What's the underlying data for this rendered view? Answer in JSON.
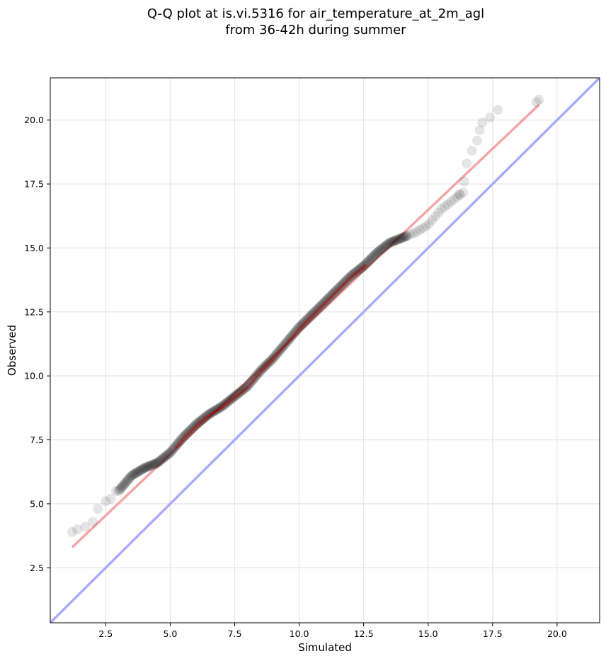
{
  "chart_data": {
    "type": "scatter",
    "title_line1": "Q-Q plot at is.vi.5316 for air_temperature_at_2m_agl",
    "title_line2": "from 36-42h during summer",
    "xlabel": "Simulated",
    "ylabel": "Observed",
    "xlim": [
      0.35,
      21.65
    ],
    "ylim": [
      0.35,
      21.65
    ],
    "xticks": [
      2.5,
      5.0,
      7.5,
      10.0,
      12.5,
      15.0,
      17.5,
      20.0
    ],
    "yticks": [
      2.5,
      5.0,
      7.5,
      10.0,
      12.5,
      15.0,
      17.5,
      20.0
    ],
    "xtick_labels": [
      "2.5",
      "5.0",
      "7.5",
      "10.0",
      "12.5",
      "15.0",
      "17.5",
      "20.0"
    ],
    "ytick_labels": [
      "2.5",
      "5.0",
      "7.5",
      "10.0",
      "12.5",
      "15.0",
      "17.5",
      "20.0"
    ],
    "grid": true,
    "reference_line": {
      "name": "1:1",
      "color": "#aaaaff",
      "x": [
        0.35,
        21.65
      ],
      "y": [
        0.35,
        21.65
      ]
    },
    "fit_line": {
      "color": "#f4a6a6",
      "x": [
        1.2,
        19.3
      ],
      "y": [
        3.3,
        20.6
      ]
    },
    "marker_color": "#000000",
    "quantile_profile": {
      "x": [
        1.2,
        1.6,
        2.1,
        2.6,
        3.0,
        3.5,
        4.0,
        4.5,
        5.0,
        5.5,
        6.0,
        6.5,
        7.0,
        7.5,
        8.0,
        8.5,
        9.0,
        9.5,
        10.0,
        10.5,
        11.0,
        11.5,
        12.0,
        12.5,
        13.0,
        13.5,
        14.0,
        14.5,
        15.0,
        15.5,
        16.0,
        16.4,
        16.6,
        17.0,
        17.4,
        17.7,
        18.0,
        19.3
      ],
      "y": [
        3.9,
        4.05,
        4.4,
        5.1,
        5.5,
        6.1,
        6.4,
        6.6,
        7.0,
        7.6,
        8.1,
        8.5,
        8.8,
        9.2,
        9.6,
        10.2,
        10.7,
        11.3,
        11.9,
        12.4,
        12.9,
        13.4,
        13.9,
        14.3,
        14.8,
        15.2,
        15.4,
        15.6,
        15.9,
        16.5,
        16.9,
        17.2,
        18.3,
        19.6,
        20.1,
        20.4,
        20.6,
        20.8
      ]
    },
    "sample_points": [
      [
        1.2,
        3.9
      ],
      [
        1.4,
        4.0
      ],
      [
        1.7,
        4.1
      ],
      [
        2.0,
        4.3
      ],
      [
        2.2,
        4.8
      ],
      [
        2.5,
        5.1
      ],
      [
        2.7,
        5.2
      ],
      [
        2.9,
        5.5
      ],
      [
        19.2,
        20.7
      ],
      [
        19.3,
        20.8
      ],
      [
        17.7,
        20.4
      ],
      [
        17.4,
        20.1
      ],
      [
        17.1,
        19.9
      ],
      [
        17.0,
        19.6
      ],
      [
        16.9,
        19.2
      ],
      [
        16.7,
        18.8
      ],
      [
        16.5,
        18.3
      ],
      [
        16.4,
        17.6
      ],
      [
        16.2,
        17.1
      ]
    ]
  }
}
